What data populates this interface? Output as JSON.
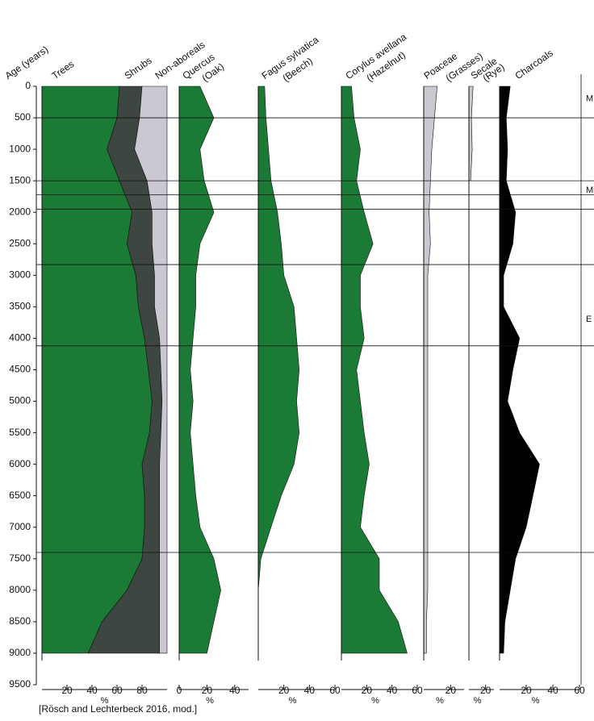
{
  "chart_data": [
    {
      "type": "area",
      "stacked": true,
      "ylabel": "Age (years)",
      "y": [
        0,
        500,
        1000,
        1500,
        2000,
        2500,
        3000,
        3500,
        4000,
        4500,
        5000,
        5500,
        6000,
        6500,
        7000,
        7500,
        8000,
        8500,
        9000
      ],
      "ylim": [
        0,
        9500
      ],
      "yticks": [
        0,
        500,
        1000,
        1500,
        2000,
        2500,
        3000,
        3500,
        4000,
        4500,
        5000,
        5500,
        6000,
        6500,
        7000,
        7500,
        8000,
        8500,
        9000,
        9500
      ],
      "hlines": [
        500,
        1500,
        1720,
        1950,
        2830,
        4120,
        7400
      ],
      "annotations": [
        {
          "text": "M",
          "y": 200
        },
        {
          "text": "Mi",
          "y": 1650
        },
        {
          "text": "E",
          "y": 3700
        }
      ],
      "xlim": [
        0,
        100
      ],
      "xticks": [
        20,
        40,
        60,
        80
      ],
      "xlabel": "%",
      "series": [
        {
          "name": "Trees",
          "color": "#1b7a35",
          "values": [
            62,
            60,
            52,
            62,
            72,
            68,
            75,
            77,
            82,
            85,
            88,
            86,
            80,
            82,
            82,
            80,
            68,
            48,
            37
          ]
        },
        {
          "name": "Shrubs",
          "color": "#3e4641",
          "values": [
            18,
            18,
            22,
            22,
            16,
            20,
            15,
            13,
            12,
            10,
            8,
            9,
            14,
            12,
            12,
            14,
            26,
            46,
            57
          ]
        },
        {
          "name": "Non-aboreals",
          "color": "#cbc8d2",
          "values": [
            20,
            22,
            26,
            16,
            12,
            12,
            10,
            10,
            6,
            5,
            4,
            5,
            6,
            6,
            6,
            6,
            6,
            6,
            6
          ]
        }
      ]
    },
    {
      "type": "area",
      "title": "Quercus",
      "subtitle": "(Oak)",
      "xlim": [
        0,
        50
      ],
      "xticks": [
        0,
        20,
        40
      ],
      "xlabel": "%",
      "series": [
        {
          "color": "#1b7a35",
          "values": [
            15,
            25,
            15,
            18,
            25,
            15,
            12,
            12,
            10,
            8,
            10,
            8,
            10,
            12,
            15,
            25,
            30,
            25,
            20
          ]
        }
      ]
    },
    {
      "type": "area",
      "title": "Fagus sylvatica",
      "subtitle": "(Beech)",
      "xlim": [
        0,
        60
      ],
      "xticks": [
        20,
        40,
        60
      ],
      "xlabel": "%",
      "series": [
        {
          "color": "#1b7a35",
          "values": [
            5,
            6,
            8,
            10,
            15,
            18,
            20,
            28,
            30,
            32,
            30,
            32,
            28,
            18,
            10,
            2,
            0,
            0,
            0
          ]
        }
      ]
    },
    {
      "type": "area",
      "title": "Corylus avellana",
      "subtitle": "(Hazelnut)",
      "xlim": [
        0,
        60
      ],
      "xticks": [
        20,
        40,
        60
      ],
      "xlabel": "%",
      "series": [
        {
          "color": "#1b7a35",
          "values": [
            8,
            10,
            15,
            12,
            18,
            25,
            15,
            15,
            18,
            12,
            15,
            18,
            22,
            18,
            15,
            30,
            30,
            45,
            52
          ]
        }
      ]
    },
    {
      "type": "area",
      "title": "Poaceae",
      "subtitle": "(Grasses)",
      "xlim": [
        0,
        30
      ],
      "xticks": [
        20
      ],
      "xlabel": "%",
      "series": [
        {
          "color": "#cbc8d2",
          "values": [
            10,
            8,
            6,
            5,
            4,
            5,
            3,
            3,
            3,
            3,
            3,
            3,
            3,
            3,
            3,
            3,
            3,
            2,
            2
          ]
        }
      ]
    },
    {
      "type": "area",
      "title": "Secale",
      "subtitle": "(Rye)",
      "xlim": [
        0,
        30
      ],
      "xticks": [
        20
      ],
      "xlabel": "%",
      "series": [
        {
          "color": "#cbc8d2",
          "values": [
            5,
            3,
            4,
            2,
            null,
            null,
            null,
            null,
            null,
            null,
            null,
            null,
            null,
            null,
            null,
            null,
            null,
            null,
            null
          ]
        }
      ]
    },
    {
      "type": "area",
      "title": "Charcoals",
      "xlim": [
        0,
        60
      ],
      "xticks": [
        20,
        40,
        60
      ],
      "xlabel": "%",
      "series": [
        {
          "color": "#000000",
          "values": [
            8,
            5,
            6,
            5,
            12,
            10,
            3,
            3,
            15,
            10,
            6,
            15,
            30,
            25,
            20,
            12,
            8,
            4,
            3
          ]
        }
      ]
    }
  ],
  "source": "[Rösch and Lechterbeck 2016, mod.]"
}
